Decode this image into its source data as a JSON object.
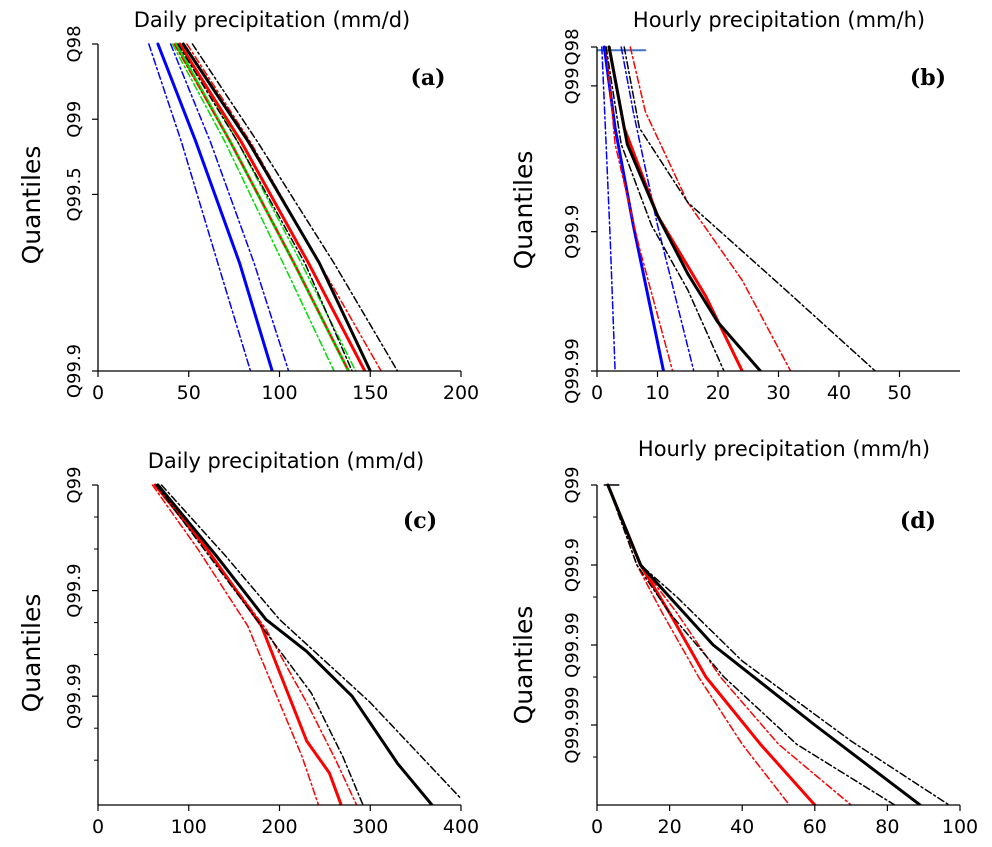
{
  "chart_data": [
    {
      "panel": "a",
      "type": "line",
      "title": "Daily precipitation (mm/d)",
      "panel_label": "(a)",
      "ylabel": "Quantiles",
      "xlim": [
        0,
        200
      ],
      "x_ticks": [
        0,
        50,
        100,
        150,
        200
      ],
      "y_ticks": [
        {
          "label": "Q98",
          "pos": 0
        },
        {
          "label": "Q99",
          "pos": 0.23
        },
        {
          "label": "Q99.5",
          "pos": 0.46
        },
        {
          "label": "Q99.9",
          "pos": 1
        }
      ],
      "series": [
        {
          "color": "#0000ff",
          "dash": "solid",
          "width": 3,
          "points": [
            [
              33,
              0
            ],
            [
              54,
              0.3
            ],
            [
              78,
              0.67
            ],
            [
              96,
              1
            ]
          ]
        },
        {
          "color": "#0000ff",
          "dash": "dashdot",
          "width": 1.5,
          "points": [
            [
              28,
              0
            ],
            [
              46,
              0.3
            ],
            [
              66,
              0.67
            ],
            [
              84,
              1
            ]
          ]
        },
        {
          "color": "#0000ff",
          "dash": "dashdot",
          "width": 1.5,
          "points": [
            [
              40,
              0
            ],
            [
              62,
              0.3
            ],
            [
              86,
              0.67
            ],
            [
              105,
              1
            ]
          ]
        },
        {
          "color": "#00dd00",
          "dash": "solid",
          "width": 3,
          "points": [
            [
              43,
              0
            ],
            [
              73,
              0.3
            ],
            [
              108,
              0.67
            ],
            [
              138,
              1
            ]
          ]
        },
        {
          "color": "#00dd00",
          "dash": "dashdot",
          "width": 1.5,
          "points": [
            [
              41,
              0
            ],
            [
              70,
              0.3
            ],
            [
              102,
              0.67
            ],
            [
              130,
              1
            ]
          ]
        },
        {
          "color": "#00dd00",
          "dash": "dashdot",
          "width": 1.5,
          "points": [
            [
              46,
              0
            ],
            [
              77,
              0.3
            ],
            [
              112,
              0.67
            ],
            [
              142,
              1
            ]
          ]
        },
        {
          "color": "#ff0000",
          "dash": "solid",
          "width": 3,
          "points": [
            [
              45,
              0
            ],
            [
              79,
              0.3
            ],
            [
              116,
              0.67
            ],
            [
              147,
              1
            ]
          ]
        },
        {
          "color": "#ff0000",
          "dash": "dashdot",
          "width": 1.5,
          "points": [
            [
              42,
              0
            ],
            [
              73,
              0.3
            ],
            [
              108,
              0.67
            ],
            [
              138,
              1
            ]
          ]
        },
        {
          "color": "#ff0000",
          "dash": "dashdot",
          "width": 1.5,
          "points": [
            [
              49,
              0
            ],
            [
              84,
              0.3
            ],
            [
              122,
              0.67
            ],
            [
              156,
              1
            ]
          ]
        },
        {
          "color": "#000000",
          "dash": "solid",
          "width": 3,
          "points": [
            [
              47,
              0
            ],
            [
              83,
              0.3
            ],
            [
              122,
              0.67
            ],
            [
              150,
              1
            ]
          ]
        },
        {
          "color": "#000000",
          "dash": "dashdot",
          "width": 1.5,
          "points": [
            [
              44,
              0
            ],
            [
              77,
              0.3
            ],
            [
              114,
              0.67
            ],
            [
              140,
              1
            ]
          ]
        },
        {
          "color": "#000000",
          "dash": "dashdot",
          "width": 1.5,
          "points": [
            [
              52,
              0
            ],
            [
              88,
              0.3
            ],
            [
              130,
              0.67
            ],
            [
              165,
              1
            ]
          ]
        }
      ]
    },
    {
      "panel": "b",
      "type": "line",
      "title": "Hourly precipitation (mm/h)",
      "panel_label": "(b)",
      "ylabel": "Quantiles",
      "xlim": [
        0,
        60
      ],
      "x_ticks": [
        0,
        10,
        20,
        30,
        40,
        50
      ],
      "y_ticks": [
        {
          "label": "Q98",
          "pos": 0
        },
        {
          "label": "Q99",
          "pos": 0.12
        },
        {
          "label": "Q99.9",
          "pos": 0.57
        },
        {
          "label": "Q99.99",
          "pos": 1
        }
      ],
      "series": [
        {
          "color": "#4472c4",
          "dash": "solid",
          "width": 2,
          "points": [
            [
              0,
              0.01
            ],
            [
              8,
              0.01
            ]
          ]
        },
        {
          "color": "#0000ff",
          "dash": "solid",
          "width": 3,
          "points": [
            [
              1.2,
              0
            ],
            [
              3,
              0.25
            ],
            [
              6,
              0.55
            ],
            [
              11,
              1
            ]
          ]
        },
        {
          "color": "#0000ff",
          "dash": "dashdot",
          "width": 1.5,
          "points": [
            [
              0.8,
              0
            ],
            [
              1.5,
              0.3
            ],
            [
              2.2,
              0.6
            ],
            [
              3,
              1
            ]
          ]
        },
        {
          "color": "#0000ff",
          "dash": "dashdot",
          "width": 1.5,
          "points": [
            [
              4,
              0
            ],
            [
              6,
              0.2
            ],
            [
              10,
              0.55
            ],
            [
              16,
              1
            ]
          ]
        },
        {
          "color": "#ff0000",
          "dash": "solid",
          "width": 3,
          "points": [
            [
              2,
              0
            ],
            [
              4.5,
              0.25
            ],
            [
              10,
              0.52
            ],
            [
              18,
              0.77
            ],
            [
              24,
              1
            ]
          ]
        },
        {
          "color": "#ff0000",
          "dash": "dashdot",
          "width": 1.5,
          "points": [
            [
              1.5,
              0
            ],
            [
              3,
              0.3
            ],
            [
              7,
              0.62
            ],
            [
              12.5,
              1
            ]
          ]
        },
        {
          "color": "#ff0000",
          "dash": "dashdot",
          "width": 1.5,
          "points": [
            [
              5.5,
              0
            ],
            [
              8,
              0.2
            ],
            [
              15,
              0.48
            ],
            [
              24,
              0.72
            ],
            [
              32,
              1
            ]
          ]
        },
        {
          "color": "#000000",
          "dash": "solid",
          "width": 3,
          "points": [
            [
              2,
              0
            ],
            [
              5,
              0.3
            ],
            [
              10,
              0.52
            ],
            [
              15,
              0.7
            ],
            [
              20,
              0.85
            ],
            [
              27,
              1
            ]
          ]
        },
        {
          "color": "#000000",
          "dash": "dashdot",
          "width": 1.5,
          "points": [
            [
              1.5,
              0
            ],
            [
              4,
              0.3
            ],
            [
              9,
              0.55
            ],
            [
              15,
              0.75
            ],
            [
              21,
              1
            ]
          ]
        },
        {
          "color": "#000000",
          "dash": "dashdot",
          "width": 1.5,
          "points": [
            [
              4.5,
              0
            ],
            [
              7,
              0.25
            ],
            [
              15,
              0.48
            ],
            [
              30,
              0.73
            ],
            [
              46,
              1
            ]
          ]
        }
      ]
    },
    {
      "panel": "c",
      "type": "line",
      "title": "Daily precipitation (mm/d)",
      "panel_label": "(c)",
      "ylabel": "Quantiles",
      "xlim": [
        0,
        400
      ],
      "x_ticks": [
        0,
        100,
        200,
        300,
        400
      ],
      "y_ticks": [
        {
          "label": "Q99",
          "pos": 0
        },
        {
          "label": "Q99.9",
          "pos": 0.33
        },
        {
          "label": "Q99.99",
          "pos": 0.66
        }
      ],
      "series": [
        {
          "color": "#ff0000",
          "dash": "solid",
          "width": 3,
          "points": [
            [
              63,
              0
            ],
            [
              120,
              0.2
            ],
            [
              180,
              0.44
            ],
            [
              205,
              0.62
            ],
            [
              230,
              0.8
            ],
            [
              255,
              0.9
            ],
            [
              268,
              1
            ]
          ]
        },
        {
          "color": "#ff0000",
          "dash": "dashdot",
          "width": 1.5,
          "points": [
            [
              60,
              0
            ],
            [
              110,
              0.2
            ],
            [
              165,
              0.44
            ],
            [
              200,
              0.68
            ],
            [
              225,
              0.85
            ],
            [
              243,
              1
            ]
          ]
        },
        {
          "color": "#ff0000",
          "dash": "dashdot",
          "width": 1.5,
          "points": [
            [
              66,
              0
            ],
            [
              125,
              0.22
            ],
            [
              185,
              0.45
            ],
            [
              230,
              0.68
            ],
            [
              262,
              0.86
            ],
            [
              285,
              1
            ]
          ]
        },
        {
          "color": "#000000",
          "dash": "solid",
          "width": 3,
          "points": [
            [
              66,
              0
            ],
            [
              130,
              0.22
            ],
            [
              185,
              0.42
            ],
            [
              230,
              0.52
            ],
            [
              280,
              0.66
            ],
            [
              330,
              0.87
            ],
            [
              368,
              1
            ]
          ]
        },
        {
          "color": "#000000",
          "dash": "dashdot",
          "width": 1.5,
          "points": [
            [
              64,
              0
            ],
            [
              122,
              0.22
            ],
            [
              185,
              0.46
            ],
            [
              235,
              0.65
            ],
            [
              270,
              0.85
            ],
            [
              292,
              1
            ]
          ]
        },
        {
          "color": "#000000",
          "dash": "dashdot",
          "width": 1.5,
          "points": [
            [
              70,
              0
            ],
            [
              140,
              0.22
            ],
            [
              200,
              0.42
            ],
            [
              300,
              0.68
            ],
            [
              400,
              0.98
            ]
          ]
        }
      ]
    },
    {
      "panel": "d",
      "type": "line",
      "title": "Hourly precipitation (mm/h)",
      "panel_label": "(d)",
      "ylabel": "Quantiles",
      "xlim": [
        0,
        100
      ],
      "x_ticks": [
        0,
        20,
        40,
        60,
        80,
        100
      ],
      "y_ticks": [
        {
          "label": "Q99",
          "pos": 0
        },
        {
          "label": "Q99.9",
          "pos": 0.25
        },
        {
          "label": "Q99.99",
          "pos": 0.5
        },
        {
          "label": "Q99.999",
          "pos": 0.75
        }
      ],
      "series": [
        {
          "color": "#000000",
          "dash": "solid",
          "width": 1.5,
          "points": [
            [
              2,
              0
            ],
            [
              6,
              0
            ]
          ]
        },
        {
          "color": "#ff0000",
          "dash": "solid",
          "width": 3,
          "points": [
            [
              3,
              0
            ],
            [
              12,
              0.25
            ],
            [
              20,
              0.4
            ],
            [
              30,
              0.6
            ],
            [
              45,
              0.81
            ],
            [
              60,
              1
            ]
          ]
        },
        {
          "color": "#ff0000",
          "dash": "dashdot",
          "width": 1.5,
          "points": [
            [
              3,
              0
            ],
            [
              11,
              0.25
            ],
            [
              18,
              0.4
            ],
            [
              28,
              0.6
            ],
            [
              40,
              0.81
            ],
            [
              53,
              1
            ]
          ]
        },
        {
          "color": "#ff0000",
          "dash": "dashdot",
          "width": 1.5,
          "points": [
            [
              3,
              0
            ],
            [
              12,
              0.25
            ],
            [
              22,
              0.4
            ],
            [
              34,
              0.6
            ],
            [
              50,
              0.81
            ],
            [
              70,
              1
            ]
          ]
        },
        {
          "color": "#000000",
          "dash": "solid",
          "width": 3,
          "points": [
            [
              3,
              0
            ],
            [
              12,
              0.25
            ],
            [
              20,
              0.35
            ],
            [
              32,
              0.5
            ],
            [
              60,
              0.75
            ],
            [
              89,
              1
            ]
          ]
        },
        {
          "color": "#000000",
          "dash": "dashdot",
          "width": 1.5,
          "points": [
            [
              3,
              0
            ],
            [
              11,
              0.25
            ],
            [
              20,
              0.4
            ],
            [
              35,
              0.6
            ],
            [
              55,
              0.81
            ],
            [
              82,
              1
            ]
          ]
        },
        {
          "color": "#000000",
          "dash": "dashdot",
          "width": 1.5,
          "points": [
            [
              3,
              0
            ],
            [
              12,
              0.25
            ],
            [
              22,
              0.35
            ],
            [
              40,
              0.55
            ],
            [
              70,
              0.8
            ],
            [
              97,
              1
            ]
          ]
        }
      ]
    }
  ]
}
